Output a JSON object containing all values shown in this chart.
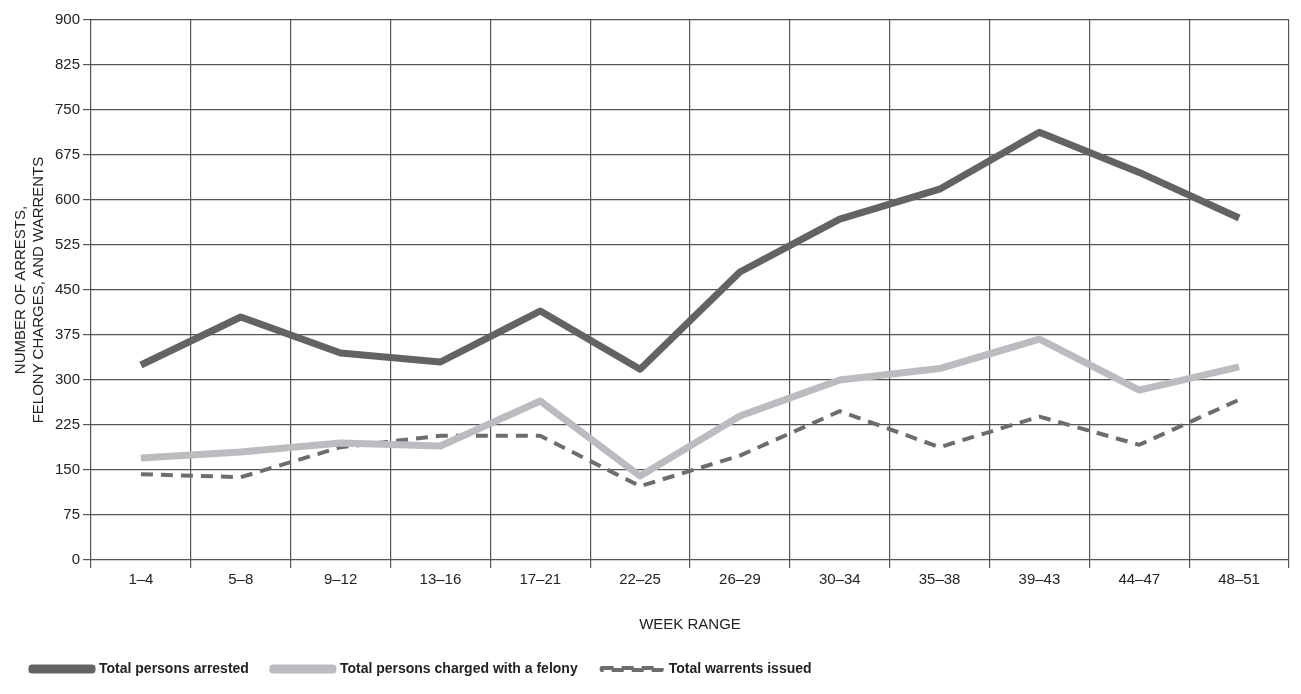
{
  "chart_data": {
    "type": "line",
    "xlabel": "WEEK RANGE",
    "ylabel": "NUMBER OF ARRESTS,\nFELONY CHARGES, AND WARRENTS",
    "categories": [
      "1–4",
      "5–8",
      "9–12",
      "13–16",
      "17–21",
      "22–25",
      "26–29",
      "30–34",
      "35–38",
      "39–43",
      "44–47",
      "48–51"
    ],
    "ylim": [
      0,
      900
    ],
    "yticks": [
      0,
      75,
      150,
      225,
      300,
      375,
      450,
      525,
      600,
      675,
      750,
      825,
      900
    ],
    "grid": true,
    "legend": "bottom",
    "marker": "none",
    "series": [
      {
        "name": "Total persons arrested",
        "color": "#636366",
        "line_style": "solid",
        "values": [
          325,
          405,
          345,
          330,
          415,
          318,
          480,
          568,
          618,
          713,
          646,
          570
        ]
      },
      {
        "name": "Total persons charged with a felony",
        "color": "#bcbcc0",
        "line_style": "solid",
        "values": [
          170,
          180,
          195,
          190,
          265,
          140,
          240,
          300,
          319,
          368,
          283,
          322
        ]
      },
      {
        "name": "Total warrents issued",
        "color": "#6d6d70",
        "line_style": "dashed",
        "values": [
          143,
          138,
          188,
          207,
          207,
          123,
          174,
          248,
          188,
          239,
          192,
          267
        ]
      }
    ]
  }
}
